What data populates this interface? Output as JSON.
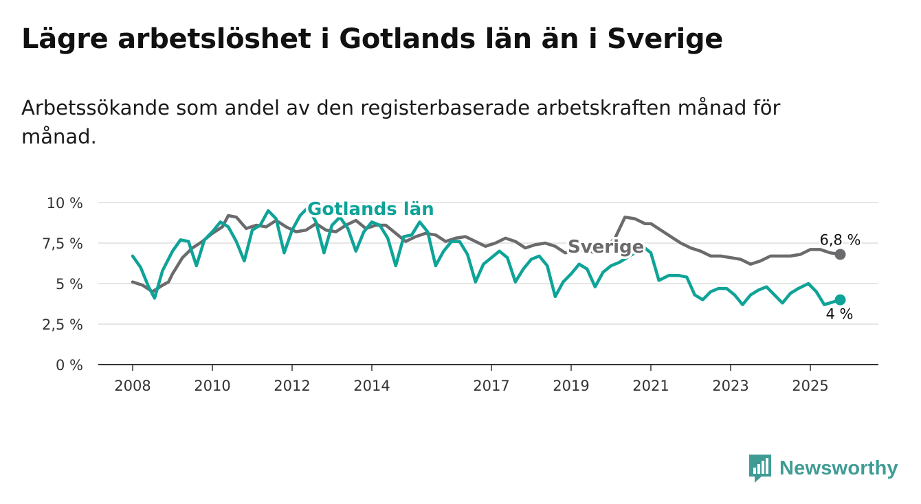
{
  "header": {
    "title": "Lägre arbetslöshet i Gotlands län än i Sverige",
    "subtitle": "Arbetssökande som andel av den registerbaserade arbetskraften månad för månad."
  },
  "brand": {
    "name": "Newsworthy",
    "color": "#3f9c95"
  },
  "chart_data": {
    "type": "line",
    "title": "Lägre arbetslöshet i Gotlands län än i Sverige",
    "xlabel": "",
    "ylabel": "",
    "xlim": [
      2008,
      2025.75
    ],
    "ylim": [
      0,
      10
    ],
    "grid": true,
    "y_ticks": [
      0,
      2.5,
      5,
      7.5,
      10
    ],
    "y_tick_labels": [
      "0 %",
      "2,5 %",
      "5 %",
      "7,5 %",
      "10 %"
    ],
    "x_ticks": [
      2008,
      2010,
      2012,
      2014,
      2017,
      2019,
      2021,
      2023,
      2025
    ],
    "x_tick_labels": [
      "2008",
      "2010",
      "2012",
      "2014",
      "2017",
      "2019",
      "2021",
      "2023",
      "2025"
    ],
    "series": [
      {
        "name": "Sverige",
        "label": "Sverige",
        "color": "#6b6a6c",
        "end_label": "6,8 %",
        "points": [
          [
            2008.0,
            5.1
          ],
          [
            2008.25,
            4.9
          ],
          [
            2008.5,
            4.5
          ],
          [
            2008.75,
            4.9
          ],
          [
            2008.9,
            5.1
          ],
          [
            2009.0,
            5.6
          ],
          [
            2009.25,
            6.6
          ],
          [
            2009.5,
            7.2
          ],
          [
            2009.75,
            7.6
          ],
          [
            2010.0,
            8.1
          ],
          [
            2010.25,
            8.5
          ],
          [
            2010.4,
            9.2
          ],
          [
            2010.6,
            9.1
          ],
          [
            2010.85,
            8.4
          ],
          [
            2011.1,
            8.6
          ],
          [
            2011.35,
            8.5
          ],
          [
            2011.6,
            8.9
          ],
          [
            2011.85,
            8.5
          ],
          [
            2012.1,
            8.2
          ],
          [
            2012.35,
            8.3
          ],
          [
            2012.6,
            8.7
          ],
          [
            2012.85,
            8.3
          ],
          [
            2013.1,
            8.2
          ],
          [
            2013.35,
            8.6
          ],
          [
            2013.6,
            8.9
          ],
          [
            2013.85,
            8.4
          ],
          [
            2014.1,
            8.6
          ],
          [
            2014.35,
            8.6
          ],
          [
            2014.6,
            8.1
          ],
          [
            2014.85,
            7.6
          ],
          [
            2015.1,
            7.9
          ],
          [
            2015.35,
            8.1
          ],
          [
            2015.6,
            8.0
          ],
          [
            2015.85,
            7.6
          ],
          [
            2016.1,
            7.8
          ],
          [
            2016.35,
            7.9
          ],
          [
            2016.6,
            7.6
          ],
          [
            2016.85,
            7.3
          ],
          [
            2017.1,
            7.5
          ],
          [
            2017.35,
            7.8
          ],
          [
            2017.6,
            7.6
          ],
          [
            2017.85,
            7.2
          ],
          [
            2018.1,
            7.4
          ],
          [
            2018.35,
            7.5
          ],
          [
            2018.6,
            7.3
          ],
          [
            2018.85,
            6.9
          ],
          [
            2019.1,
            7.0
          ],
          [
            2019.35,
            7.1
          ],
          [
            2019.6,
            6.9
          ],
          [
            2019.85,
            7.2
          ],
          [
            2020.1,
            7.8
          ],
          [
            2020.35,
            9.1
          ],
          [
            2020.6,
            9.0
          ],
          [
            2020.85,
            8.7
          ],
          [
            2021.0,
            8.7
          ],
          [
            2021.25,
            8.3
          ],
          [
            2021.5,
            7.9
          ],
          [
            2021.75,
            7.5
          ],
          [
            2022.0,
            7.2
          ],
          [
            2022.25,
            7.0
          ],
          [
            2022.5,
            6.7
          ],
          [
            2022.75,
            6.7
          ],
          [
            2023.0,
            6.6
          ],
          [
            2023.25,
            6.5
          ],
          [
            2023.5,
            6.2
          ],
          [
            2023.75,
            6.4
          ],
          [
            2024.0,
            6.7
          ],
          [
            2024.25,
            6.7
          ],
          [
            2024.5,
            6.7
          ],
          [
            2024.75,
            6.8
          ],
          [
            2025.0,
            7.1
          ],
          [
            2025.25,
            7.1
          ],
          [
            2025.5,
            6.9
          ],
          [
            2025.75,
            6.8
          ]
        ]
      },
      {
        "name": "Gotlands län",
        "label": "Gotlands län",
        "color": "#0fa398",
        "end_label": "4 %",
        "points": [
          [
            2008.0,
            6.7
          ],
          [
            2008.2,
            6.0
          ],
          [
            2008.4,
            4.8
          ],
          [
            2008.55,
            4.1
          ],
          [
            2008.75,
            5.8
          ],
          [
            2009.0,
            7.0
          ],
          [
            2009.2,
            7.7
          ],
          [
            2009.4,
            7.6
          ],
          [
            2009.6,
            6.1
          ],
          [
            2009.8,
            7.7
          ],
          [
            2010.0,
            8.2
          ],
          [
            2010.2,
            8.8
          ],
          [
            2010.4,
            8.5
          ],
          [
            2010.6,
            7.6
          ],
          [
            2010.8,
            6.4
          ],
          [
            2011.0,
            8.3
          ],
          [
            2011.2,
            8.6
          ],
          [
            2011.4,
            9.5
          ],
          [
            2011.6,
            9.0
          ],
          [
            2011.8,
            6.9
          ],
          [
            2012.0,
            8.3
          ],
          [
            2012.2,
            9.2
          ],
          [
            2012.4,
            9.7
          ],
          [
            2012.6,
            8.8
          ],
          [
            2012.8,
            6.9
          ],
          [
            2013.0,
            8.6
          ],
          [
            2013.2,
            9.1
          ],
          [
            2013.4,
            8.4
          ],
          [
            2013.6,
            7.0
          ],
          [
            2013.8,
            8.2
          ],
          [
            2014.0,
            8.8
          ],
          [
            2014.2,
            8.6
          ],
          [
            2014.4,
            7.8
          ],
          [
            2014.6,
            6.1
          ],
          [
            2014.8,
            7.9
          ],
          [
            2015.0,
            8.0
          ],
          [
            2015.2,
            8.8
          ],
          [
            2015.4,
            8.2
          ],
          [
            2015.6,
            6.1
          ],
          [
            2015.8,
            7.0
          ],
          [
            2016.0,
            7.6
          ],
          [
            2016.2,
            7.6
          ],
          [
            2016.4,
            6.8
          ],
          [
            2016.6,
            5.1
          ],
          [
            2016.8,
            6.2
          ],
          [
            2017.0,
            6.6
          ],
          [
            2017.2,
            7.0
          ],
          [
            2017.4,
            6.6
          ],
          [
            2017.6,
            5.1
          ],
          [
            2017.8,
            5.9
          ],
          [
            2018.0,
            6.5
          ],
          [
            2018.2,
            6.7
          ],
          [
            2018.4,
            6.1
          ],
          [
            2018.6,
            4.2
          ],
          [
            2018.8,
            5.1
          ],
          [
            2019.0,
            5.6
          ],
          [
            2019.2,
            6.2
          ],
          [
            2019.4,
            5.9
          ],
          [
            2019.6,
            4.8
          ],
          [
            2019.8,
            5.7
          ],
          [
            2020.0,
            6.1
          ],
          [
            2020.2,
            6.3
          ],
          [
            2020.4,
            6.6
          ],
          [
            2020.6,
            6.9
          ],
          [
            2020.8,
            7.3
          ],
          [
            2021.0,
            6.9
          ],
          [
            2021.2,
            5.2
          ],
          [
            2021.45,
            5.5
          ],
          [
            2021.7,
            5.5
          ],
          [
            2021.9,
            5.4
          ],
          [
            2022.1,
            4.3
          ],
          [
            2022.3,
            4.0
          ],
          [
            2022.5,
            4.5
          ],
          [
            2022.7,
            4.7
          ],
          [
            2022.9,
            4.7
          ],
          [
            2023.1,
            4.3
          ],
          [
            2023.3,
            3.7
          ],
          [
            2023.5,
            4.3
          ],
          [
            2023.7,
            4.6
          ],
          [
            2023.9,
            4.8
          ],
          [
            2024.1,
            4.3
          ],
          [
            2024.3,
            3.8
          ],
          [
            2024.5,
            4.4
          ],
          [
            2024.7,
            4.7
          ],
          [
            2024.95,
            5.0
          ],
          [
            2025.15,
            4.5
          ],
          [
            2025.35,
            3.7
          ],
          [
            2025.75,
            4.0
          ]
        ]
      }
    ]
  }
}
